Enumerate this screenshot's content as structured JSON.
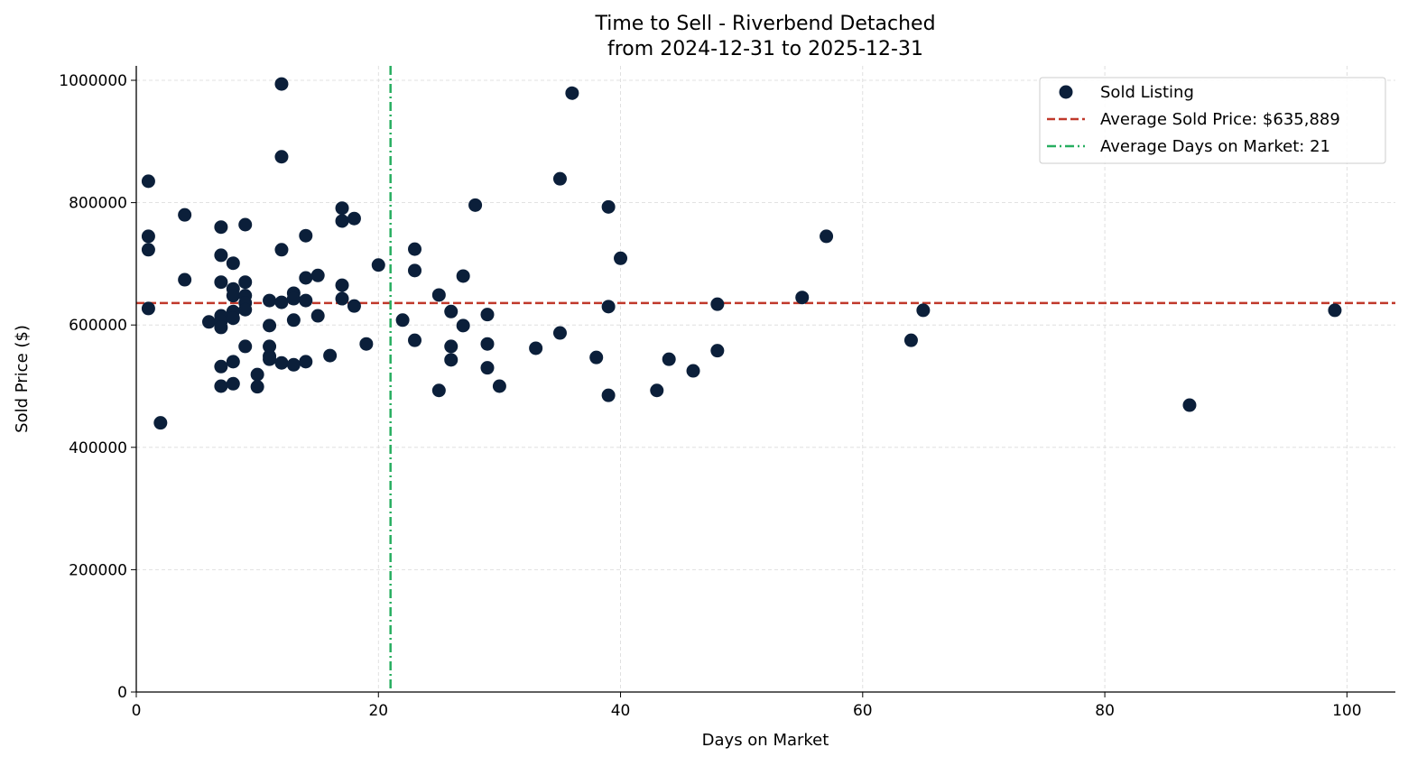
{
  "chart_data": {
    "type": "scatter",
    "title": "Time to Sell - Riverbend Detached",
    "subtitle": "from 2024-12-31 to 2025-12-31",
    "xlabel": "Days on Market",
    "ylabel": "Sold Price ($)",
    "xlim": [
      0,
      104
    ],
    "ylim": [
      0,
      1023600
    ],
    "xticks": [
      0,
      20,
      40,
      60,
      80,
      100
    ],
    "yticks": [
      0,
      200000,
      400000,
      600000,
      800000,
      1000000
    ],
    "grid": true,
    "legend_placement": "top-right",
    "colors": {
      "points": "#0b1f3a",
      "avg_price": "#c0392b",
      "avg_days": "#27ae60",
      "grid": "#d9d9d9"
    },
    "legend": [
      "Sold Listing",
      "Average Sold Price: $635,889",
      "Average Days on Market: 21"
    ],
    "avg_price": 635889,
    "avg_days": 21,
    "points": [
      [
        1,
        835000
      ],
      [
        1,
        745000
      ],
      [
        1,
        723000
      ],
      [
        1,
        627000
      ],
      [
        2,
        440000
      ],
      [
        4,
        780000
      ],
      [
        4,
        674000
      ],
      [
        6,
        605000
      ],
      [
        7,
        760000
      ],
      [
        7,
        714000
      ],
      [
        7,
        670000
      ],
      [
        7,
        615000
      ],
      [
        7,
        606000
      ],
      [
        7,
        596000
      ],
      [
        7,
        532000
      ],
      [
        7,
        500000
      ],
      [
        8,
        701000
      ],
      [
        8,
        659000
      ],
      [
        8,
        648000
      ],
      [
        8,
        622000
      ],
      [
        8,
        611000
      ],
      [
        8,
        540000
      ],
      [
        8,
        504000
      ],
      [
        9,
        764000
      ],
      [
        9,
        670000
      ],
      [
        9,
        648000
      ],
      [
        9,
        636000
      ],
      [
        9,
        625000
      ],
      [
        9,
        565000
      ],
      [
        10,
        519000
      ],
      [
        10,
        499000
      ],
      [
        11,
        640000
      ],
      [
        11,
        599000
      ],
      [
        11,
        565000
      ],
      [
        11,
        549000
      ],
      [
        11,
        544000
      ],
      [
        12,
        994000
      ],
      [
        12,
        875000
      ],
      [
        12,
        723000
      ],
      [
        12,
        637000
      ],
      [
        12,
        538000
      ],
      [
        13,
        652000
      ],
      [
        13,
        643000
      ],
      [
        13,
        608000
      ],
      [
        13,
        535000
      ],
      [
        14,
        746000
      ],
      [
        14,
        677000
      ],
      [
        14,
        640000
      ],
      [
        14,
        540000
      ],
      [
        15,
        681000
      ],
      [
        15,
        615000
      ],
      [
        16,
        550000
      ],
      [
        17,
        791000
      ],
      [
        17,
        770000
      ],
      [
        17,
        665000
      ],
      [
        17,
        643000
      ],
      [
        18,
        774000
      ],
      [
        18,
        631000
      ],
      [
        19,
        569000
      ],
      [
        20,
        698000
      ],
      [
        22,
        608000
      ],
      [
        23,
        724000
      ],
      [
        23,
        689000
      ],
      [
        23,
        575000
      ],
      [
        25,
        649000
      ],
      [
        25,
        493000
      ],
      [
        26,
        622000
      ],
      [
        26,
        565000
      ],
      [
        26,
        543000
      ],
      [
        27,
        680000
      ],
      [
        27,
        599000
      ],
      [
        28,
        796000
      ],
      [
        29,
        617000
      ],
      [
        29,
        569000
      ],
      [
        29,
        530000
      ],
      [
        30,
        500000
      ],
      [
        33,
        562000
      ],
      [
        35,
        839000
      ],
      [
        35,
        587000
      ],
      [
        36,
        979000
      ],
      [
        38,
        547000
      ],
      [
        39,
        793000
      ],
      [
        39,
        630000
      ],
      [
        39,
        485000
      ],
      [
        40,
        709000
      ],
      [
        43,
        493000
      ],
      [
        44,
        544000
      ],
      [
        46,
        525000
      ],
      [
        48,
        634000
      ],
      [
        48,
        558000
      ],
      [
        55,
        645000
      ],
      [
        57,
        745000
      ],
      [
        64,
        575000
      ],
      [
        65,
        624000
      ],
      [
        87,
        469000
      ],
      [
        99,
        624000
      ]
    ]
  }
}
